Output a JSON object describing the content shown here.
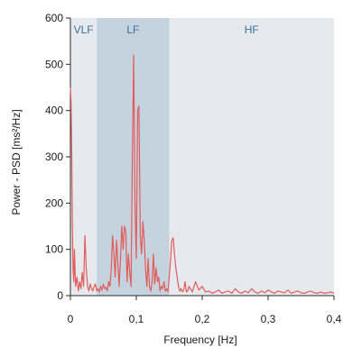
{
  "chart_data": {
    "type": "line",
    "xlabel": "Frequency [Hz]",
    "ylabel": "Power - PSD [ms²/Hz]",
    "xlim": [
      0,
      0.4
    ],
    "ylim": [
      0,
      600
    ],
    "x_ticks": [
      0,
      0.1,
      0.2,
      0.3,
      0.4
    ],
    "x_tick_labels": [
      "0",
      "0,1",
      "0,2",
      "0,3",
      "0,4"
    ],
    "y_ticks": [
      0,
      100,
      200,
      300,
      400,
      500,
      600
    ],
    "y_tick_labels": [
      "0",
      "100",
      "200",
      "300",
      "400",
      "500",
      "600"
    ],
    "bands": [
      {
        "label": "VLF",
        "x0": 0,
        "x1": 0.04,
        "color": "#e6eaee"
      },
      {
        "label": "LF",
        "x0": 0.04,
        "x1": 0.15,
        "color": "#c5d3de"
      },
      {
        "label": "HF",
        "x0": 0.15,
        "x1": 0.4,
        "color": "#e6eaee"
      }
    ],
    "line_color": "#e25c5c",
    "series": [
      {
        "x": [
          0,
          0.001,
          0.002,
          0.003,
          0.004,
          0.005,
          0.006,
          0.007,
          0.008,
          0.01,
          0.012,
          0.014,
          0.016,
          0.018,
          0.02,
          0.022,
          0.024,
          0.026,
          0.028,
          0.03,
          0.032,
          0.034,
          0.036,
          0.038,
          0.04,
          0.042,
          0.044,
          0.046,
          0.048,
          0.05,
          0.052,
          0.054,
          0.056,
          0.058,
          0.06,
          0.062,
          0.064,
          0.066,
          0.068,
          0.07,
          0.072,
          0.074,
          0.076,
          0.078,
          0.08,
          0.082,
          0.084,
          0.086,
          0.088,
          0.09,
          0.092,
          0.094,
          0.096,
          0.098,
          0.1,
          0.102,
          0.104,
          0.106,
          0.108,
          0.11,
          0.112,
          0.114,
          0.116,
          0.118,
          0.12,
          0.122,
          0.124,
          0.126,
          0.128,
          0.13,
          0.132,
          0.134,
          0.136,
          0.138,
          0.14,
          0.142,
          0.144,
          0.146,
          0.148,
          0.15,
          0.152,
          0.154,
          0.156,
          0.158,
          0.16,
          0.162,
          0.164,
          0.166,
          0.168,
          0.17,
          0.172,
          0.174,
          0.176,
          0.178,
          0.18,
          0.185,
          0.19,
          0.195,
          0.2,
          0.205,
          0.21,
          0.215,
          0.22,
          0.225,
          0.23,
          0.235,
          0.24,
          0.245,
          0.25,
          0.255,
          0.26,
          0.265,
          0.27,
          0.275,
          0.28,
          0.285,
          0.29,
          0.295,
          0.3,
          0.305,
          0.31,
          0.315,
          0.32,
          0.325,
          0.33,
          0.335,
          0.34,
          0.345,
          0.35,
          0.355,
          0.36,
          0.365,
          0.37,
          0.375,
          0.38,
          0.385,
          0.39,
          0.395,
          0.4
        ],
        "y": [
          450,
          420,
          300,
          150,
          60,
          30,
          100,
          60,
          20,
          40,
          10,
          30,
          15,
          50,
          20,
          130,
          60,
          20,
          10,
          25,
          15,
          10,
          20,
          25,
          10,
          15,
          8,
          20,
          12,
          25,
          15,
          18,
          10,
          30,
          20,
          60,
          130,
          90,
          40,
          120,
          70,
          20,
          80,
          150,
          100,
          150,
          140,
          30,
          90,
          50,
          20,
          300,
          520,
          200,
          80,
          400,
          410,
          130,
          90,
          160,
          120,
          60,
          20,
          80,
          20,
          10,
          30,
          90,
          25,
          60,
          30,
          40,
          10,
          20,
          15,
          30,
          10,
          15,
          8,
          40,
          80,
          120,
          125,
          90,
          60,
          40,
          20,
          10,
          15,
          8,
          12,
          30,
          8,
          10,
          20,
          8,
          30,
          12,
          20,
          8,
          10,
          5,
          8,
          12,
          5,
          8,
          10,
          5,
          15,
          8,
          5,
          10,
          6,
          15,
          8,
          5,
          10,
          6,
          12,
          8,
          5,
          10,
          8,
          6,
          12,
          5,
          8,
          10,
          6,
          5,
          8,
          10,
          6,
          5,
          8,
          5,
          6,
          8,
          5
        ]
      }
    ]
  }
}
